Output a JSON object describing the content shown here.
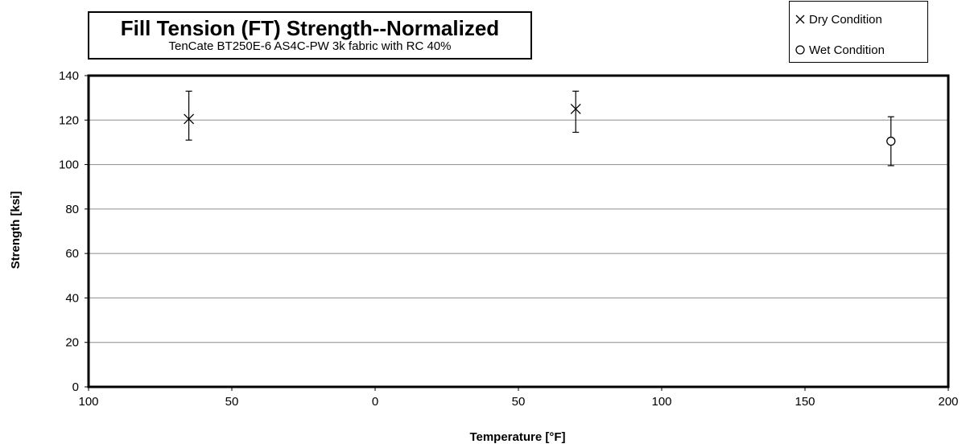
{
  "chart_data": {
    "type": "scatter",
    "title": "Fill Tension (FT) Strength--Normalized",
    "subtitle": "TenCate  BT250E-6  AS4C-PW  3k fabric with  RC 40%",
    "xlabel": "Temperature [°F]",
    "ylabel": "Strength [ksi]",
    "xlim": [
      -100,
      200
    ],
    "ylim": [
      0,
      140
    ],
    "x_ticks": [
      -100,
      -50,
      0,
      50,
      100,
      150,
      200
    ],
    "x_tick_labels": [
      "100",
      "50",
      "0",
      "50",
      "100",
      "150",
      "200"
    ],
    "y_ticks": [
      0,
      20,
      40,
      60,
      80,
      100,
      120,
      140
    ],
    "y_tick_labels": [
      "0",
      "20",
      "40",
      "60",
      "80",
      "100",
      "120",
      "140"
    ],
    "grid": "horizontal",
    "legend_position": "top-right",
    "series": [
      {
        "name": "Dry Condition",
        "marker": "x",
        "points": [
          {
            "x": -65,
            "y": 120.5,
            "min": 111,
            "max": 133
          },
          {
            "x": 70,
            "y": 125,
            "min": 114.5,
            "max": 133
          }
        ]
      },
      {
        "name": "Wet Condition",
        "marker": "o",
        "points": [
          {
            "x": 180,
            "y": 110.5,
            "min": 99.5,
            "max": 121.5
          }
        ]
      }
    ]
  }
}
